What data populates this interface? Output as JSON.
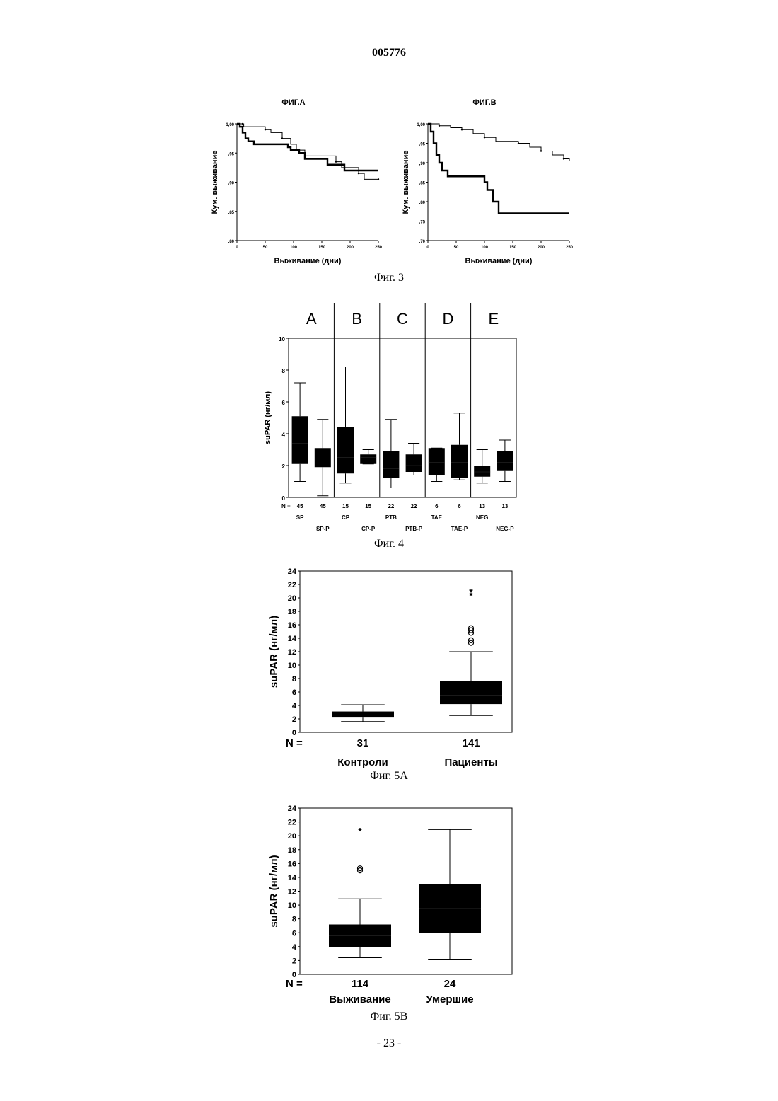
{
  "page": {
    "doc_number": "005776",
    "footer": "- 23 -"
  },
  "fig3": {
    "caption": "Фиг. 3",
    "charts": [
      {
        "type": "line",
        "title": "ФИГ.А",
        "xlabel": "Выживание (дни)",
        "ylabel": "Кум. выживание",
        "xlim": [
          0,
          250
        ],
        "ylim": [
          0.8,
          1.0
        ],
        "x_ticks": [
          "0",
          "50",
          "100",
          "150",
          "200",
          "250"
        ],
        "y_ticks": [
          ",80",
          ",85",
          ",90",
          ",95",
          "1,00"
        ],
        "y_tick_values": [
          0.8,
          0.85,
          0.9,
          0.95,
          1.0
        ],
        "series": [
          {
            "style": "thin",
            "points": [
              [
                0,
                1.0
              ],
              [
                10,
                1.0
              ],
              [
                12,
                0.995
              ],
              [
                50,
                0.99
              ],
              [
                60,
                0.985
              ],
              [
                80,
                0.975
              ],
              [
                95,
                0.965
              ],
              [
                105,
                0.955
              ],
              [
                120,
                0.945
              ],
              [
                175,
                0.935
              ],
              [
                185,
                0.925
              ],
              [
                215,
                0.915
              ],
              [
                225,
                0.905
              ],
              [
                250,
                0.905
              ]
            ]
          },
          {
            "style": "thick",
            "points": [
              [
                0,
                1.0
              ],
              [
                5,
                0.995
              ],
              [
                10,
                0.985
              ],
              [
                15,
                0.975
              ],
              [
                20,
                0.97
              ],
              [
                30,
                0.965
              ],
              [
                90,
                0.96
              ],
              [
                95,
                0.955
              ],
              [
                110,
                0.95
              ],
              [
                120,
                0.94
              ],
              [
                160,
                0.93
              ],
              [
                190,
                0.92
              ],
              [
                250,
                0.92
              ]
            ]
          }
        ]
      },
      {
        "type": "line",
        "title": "ФИГ.В",
        "xlabel": "Выживание (дни)",
        "ylabel": "Кум. выживание",
        "xlim": [
          0,
          250
        ],
        "ylim": [
          0.7,
          1.0
        ],
        "x_ticks": [
          "0",
          "50",
          "100",
          "150",
          "200",
          "250"
        ],
        "y_ticks": [
          ",70",
          ",75",
          ",80",
          ",85",
          ",90",
          ",95",
          "1,00"
        ],
        "y_tick_values": [
          0.7,
          0.75,
          0.8,
          0.85,
          0.9,
          0.95,
          1.0
        ],
        "series": [
          {
            "style": "thin",
            "points": [
              [
                0,
                1.0
              ],
              [
                20,
                0.995
              ],
              [
                40,
                0.99
              ],
              [
                60,
                0.985
              ],
              [
                80,
                0.975
              ],
              [
                100,
                0.965
              ],
              [
                120,
                0.955
              ],
              [
                160,
                0.95
              ],
              [
                180,
                0.94
              ],
              [
                200,
                0.93
              ],
              [
                220,
                0.92
              ],
              [
                240,
                0.91
              ],
              [
                250,
                0.905
              ]
            ]
          },
          {
            "style": "thick",
            "points": [
              [
                0,
                1.0
              ],
              [
                5,
                0.98
              ],
              [
                10,
                0.95
              ],
              [
                15,
                0.92
              ],
              [
                20,
                0.9
              ],
              [
                25,
                0.88
              ],
              [
                35,
                0.865
              ],
              [
                100,
                0.85
              ],
              [
                105,
                0.83
              ],
              [
                115,
                0.8
              ],
              [
                125,
                0.77
              ],
              [
                250,
                0.77
              ]
            ]
          }
        ]
      }
    ]
  },
  "fig4": {
    "caption": "Фиг. 4",
    "type": "box",
    "ylabel": "suPAR (нг/мл)",
    "ylim": [
      0,
      10
    ],
    "y_ticks": [
      "0",
      "2",
      "4",
      "6",
      "8",
      "10"
    ],
    "y_tick_values": [
      0,
      2,
      4,
      6,
      8,
      10
    ],
    "n_label": "N =",
    "group_headers": [
      "A",
      "B",
      "C",
      "D",
      "E"
    ],
    "boxes": [
      {
        "n": "45",
        "label": "SP",
        "min": 1.0,
        "q1": 2.1,
        "median": 3.4,
        "q3": 5.1,
        "max": 7.2
      },
      {
        "n": "45",
        "label": "SP-P",
        "min": 0.1,
        "q1": 1.9,
        "median": 2.3,
        "q3": 3.1,
        "max": 4.9
      },
      {
        "n": "15",
        "label": "CP",
        "min": 0.9,
        "q1": 1.5,
        "median": 2.5,
        "q3": 4.4,
        "max": 8.2
      },
      {
        "n": "15",
        "label": "CP-P",
        "min": 2.1,
        "q1": 2.1,
        "median": 2.5,
        "q3": 2.7,
        "max": 3.0
      },
      {
        "n": "22",
        "label": "PTB",
        "min": 0.6,
        "q1": 1.2,
        "median": 1.8,
        "q3": 2.9,
        "max": 4.9
      },
      {
        "n": "22",
        "label": "PTB-P",
        "min": 1.4,
        "q1": 1.6,
        "median": 2.0,
        "q3": 2.7,
        "max": 3.4
      },
      {
        "n": "6",
        "label": "TAE",
        "min": 1.0,
        "q1": 1.4,
        "median": 2.2,
        "q3": 3.1,
        "max": 3.1
      },
      {
        "n": "6",
        "label": "TAE-P",
        "min": 1.1,
        "q1": 1.2,
        "median": 2.2,
        "q3": 3.3,
        "max": 5.3
      },
      {
        "n": "13",
        "label": "NEG",
        "min": 0.9,
        "q1": 1.3,
        "median": 1.6,
        "q3": 2.0,
        "max": 3.0
      },
      {
        "n": "13",
        "label": "NEG-P",
        "min": 1.0,
        "q1": 1.7,
        "median": 2.2,
        "q3": 2.9,
        "max": 3.6
      }
    ]
  },
  "fig5a": {
    "caption": "Фиг. 5A",
    "type": "box",
    "ylabel": "suPAR (нг/мл)",
    "ylim": [
      0,
      24
    ],
    "y_ticks": [
      "0",
      "2",
      "4",
      "6",
      "8",
      "10",
      "12",
      "14",
      "16",
      "18",
      "20",
      "22",
      "24"
    ],
    "y_tick_values": [
      0,
      2,
      4,
      6,
      8,
      10,
      12,
      14,
      16,
      18,
      20,
      22,
      24
    ],
    "n_label": "N =",
    "boxes": [
      {
        "n": "31",
        "label": "Контроли",
        "min": 1.6,
        "q1": 2.2,
        "median": 2.6,
        "q3": 3.1,
        "max": 4.1,
        "outliers": []
      },
      {
        "n": "141",
        "label": "Пациенты",
        "min": 2.5,
        "q1": 4.2,
        "median": 5.5,
        "q3": 7.6,
        "max": 12.0,
        "outliers": [
          13.3,
          13.7,
          14.8,
          15.2,
          15.5
        ],
        "extremes": [
          20.3,
          20.9
        ]
      }
    ]
  },
  "fig5b": {
    "caption": "Фиг. 5B",
    "type": "box",
    "ylabel": "suPAR (нг/мл)",
    "ylim": [
      0,
      24
    ],
    "y_ticks": [
      "0",
      "2",
      "4",
      "6",
      "8",
      "10",
      "12",
      "14",
      "16",
      "18",
      "20",
      "22",
      "24"
    ],
    "y_tick_values": [
      0,
      2,
      4,
      6,
      8,
      10,
      12,
      14,
      16,
      18,
      20,
      22,
      24
    ],
    "n_label": "N =",
    "boxes": [
      {
        "n": "114",
        "label": "Выживание",
        "min": 2.4,
        "q1": 3.9,
        "median": 5.6,
        "q3": 7.2,
        "max": 10.9,
        "outliers": [
          15.0,
          15.3
        ],
        "extremes": [
          20.7
        ]
      },
      {
        "n": "24",
        "label": "Умершие",
        "min": 2.1,
        "q1": 6.0,
        "median": 9.5,
        "q3": 13.0,
        "max": 20.9,
        "outliers": [],
        "extremes": []
      }
    ]
  }
}
